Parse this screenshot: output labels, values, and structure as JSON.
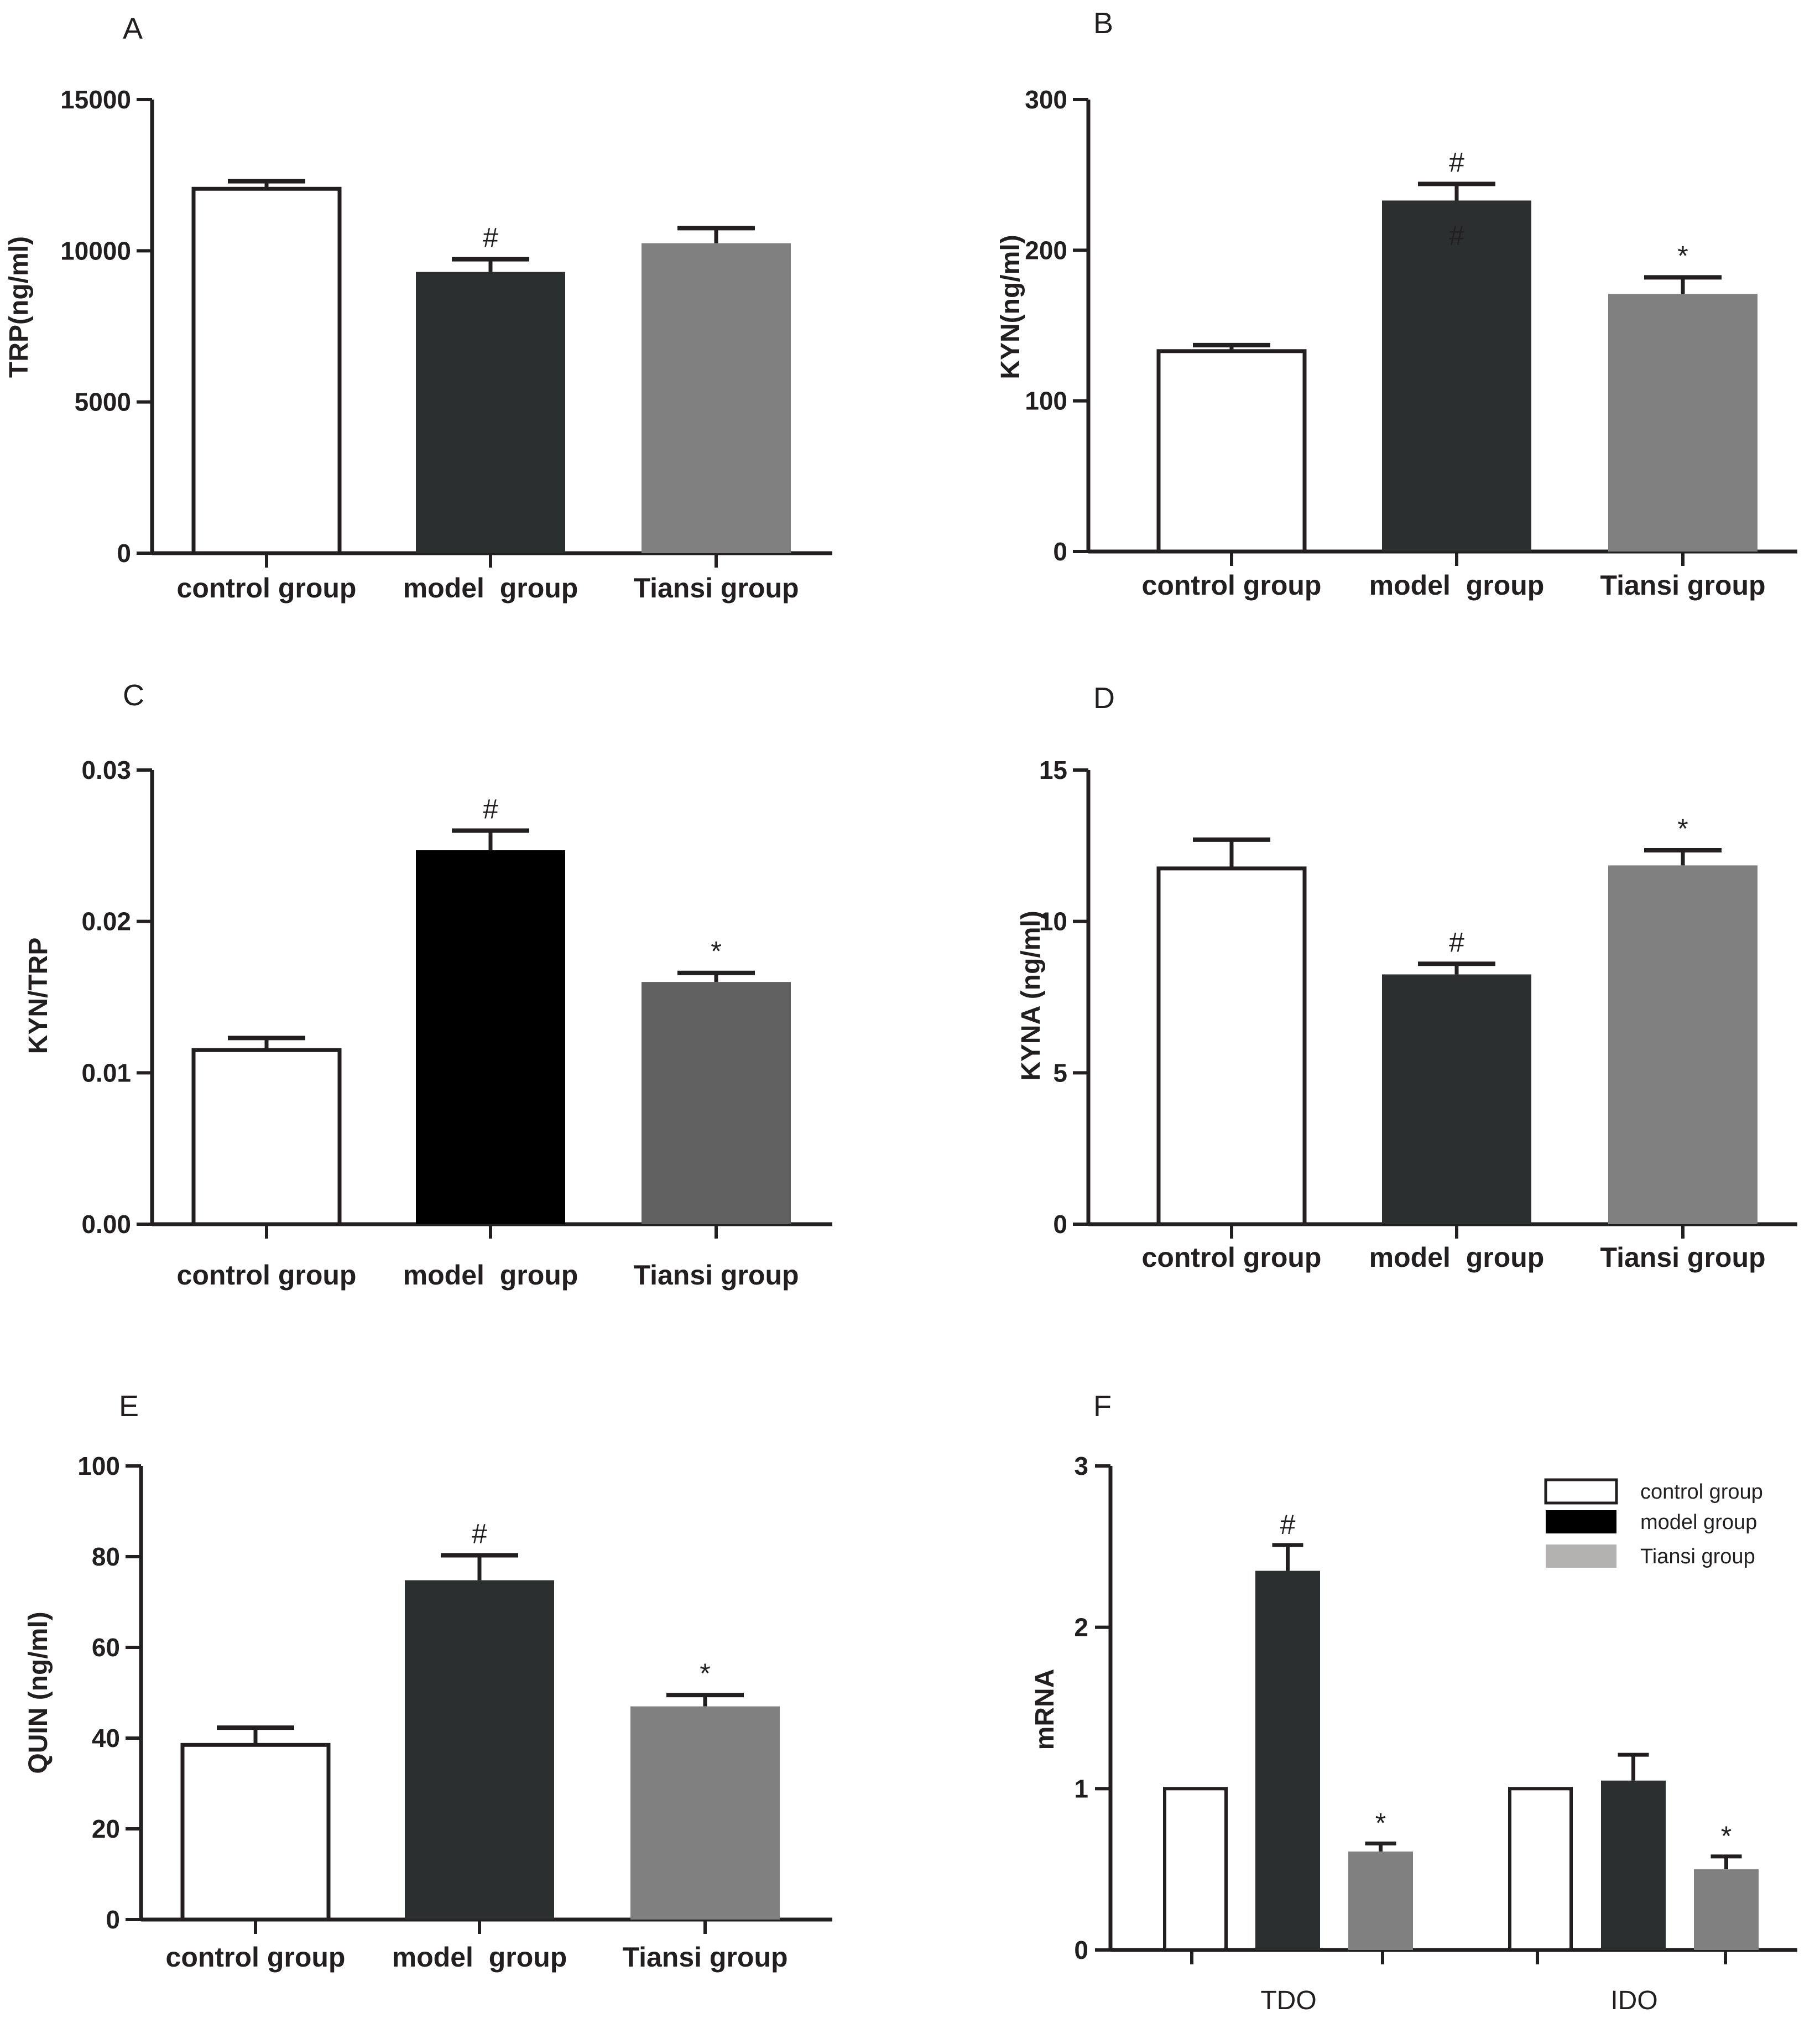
{
  "colors": {
    "control": "#ffffff",
    "model": "#2c2f2f",
    "model_black": "#000000",
    "tiansi": "#808080",
    "tiansi_dark": "#606060",
    "tiansi_legend": "#b3b0b0",
    "axis": "#231f20"
  },
  "chart_data": [
    {
      "panel_label": "A",
      "type": "bar",
      "ylabel": "TRP(ng/ml)",
      "categories": [
        "control group",
        "model  group",
        "Tiansi group"
      ],
      "values": [
        12050,
        9300,
        10250
      ],
      "errors": [
        250,
        420,
        500
      ],
      "annotations": [
        "",
        "#",
        ""
      ],
      "ylim": [
        0,
        15000
      ],
      "yticks": [
        "0",
        "5000",
        "10000",
        "15000"
      ]
    },
    {
      "panel_label": "B",
      "type": "bar",
      "ylabel": "KYN(ng/ml)",
      "categories": [
        "control group",
        "model  group",
        "Tiansi group"
      ],
      "values": [
        133,
        233,
        171
      ],
      "errors": [
        4,
        11,
        11
      ],
      "annotations": [
        "",
        "#",
        "*"
      ],
      "ylim": [
        0,
        300
      ],
      "yticks": [
        "0",
        "100",
        "200",
        "300"
      ]
    },
    {
      "panel_label": "C",
      "type": "bar",
      "ylabel": "KYN/TRP",
      "categories": [
        "control group",
        "model  group",
        "Tiansi group"
      ],
      "values": [
        0.0115,
        0.0247,
        0.016
      ],
      "errors": [
        0.0008,
        0.0013,
        0.0006
      ],
      "annotations": [
        "",
        "#",
        "*"
      ],
      "ylim": [
        0,
        0.03
      ],
      "yticks": [
        "0.00",
        "0.01",
        "0.02",
        "0.03"
      ]
    },
    {
      "panel_label": "D",
      "type": "bar",
      "ylabel": "KYNA (ng/ml)",
      "categories": [
        "control group",
        "model  group",
        "Tiansi group"
      ],
      "values": [
        11.75,
        8.25,
        11.85
      ],
      "errors": [
        0.95,
        0.35,
        0.5
      ],
      "annotations": [
        "",
        "#",
        "*"
      ],
      "ylim": [
        0,
        15
      ],
      "yticks": [
        "0",
        "5",
        "10",
        "15"
      ]
    },
    {
      "panel_label": "E",
      "type": "bar",
      "ylabel": "QUIN (ng/ml)",
      "categories": [
        "control group",
        "model  group",
        "Tiansi group"
      ],
      "values": [
        38.5,
        74.8,
        47
      ],
      "errors": [
        3.8,
        5.5,
        2.5
      ],
      "annotations": [
        "",
        "#",
        "*"
      ],
      "ylim": [
        0,
        100
      ],
      "yticks": [
        "0",
        "20",
        "40",
        "60",
        "80",
        "100"
      ]
    },
    {
      "panel_label": "F",
      "type": "bar",
      "ylabel": "mRNA",
      "groups": [
        "TDO",
        "IDO"
      ],
      "series": [
        {
          "name": "control group",
          "values": [
            1,
            1
          ],
          "errors": [
            0,
            0
          ],
          "annotations": [
            "",
            ""
          ]
        },
        {
          "name": "model group",
          "values": [
            2.35,
            1.05
          ],
          "errors": [
            0.16,
            0.16
          ],
          "annotations": [
            "#",
            ""
          ]
        },
        {
          "name": "Tiansi group",
          "values": [
            0.61,
            0.5
          ],
          "errors": [
            0.05,
            0.08
          ],
          "annotations": [
            "*",
            "*"
          ]
        }
      ],
      "ylim": [
        0,
        3
      ],
      "yticks": [
        "0",
        "1",
        "2",
        "3"
      ],
      "legend_position": "top-right"
    }
  ]
}
